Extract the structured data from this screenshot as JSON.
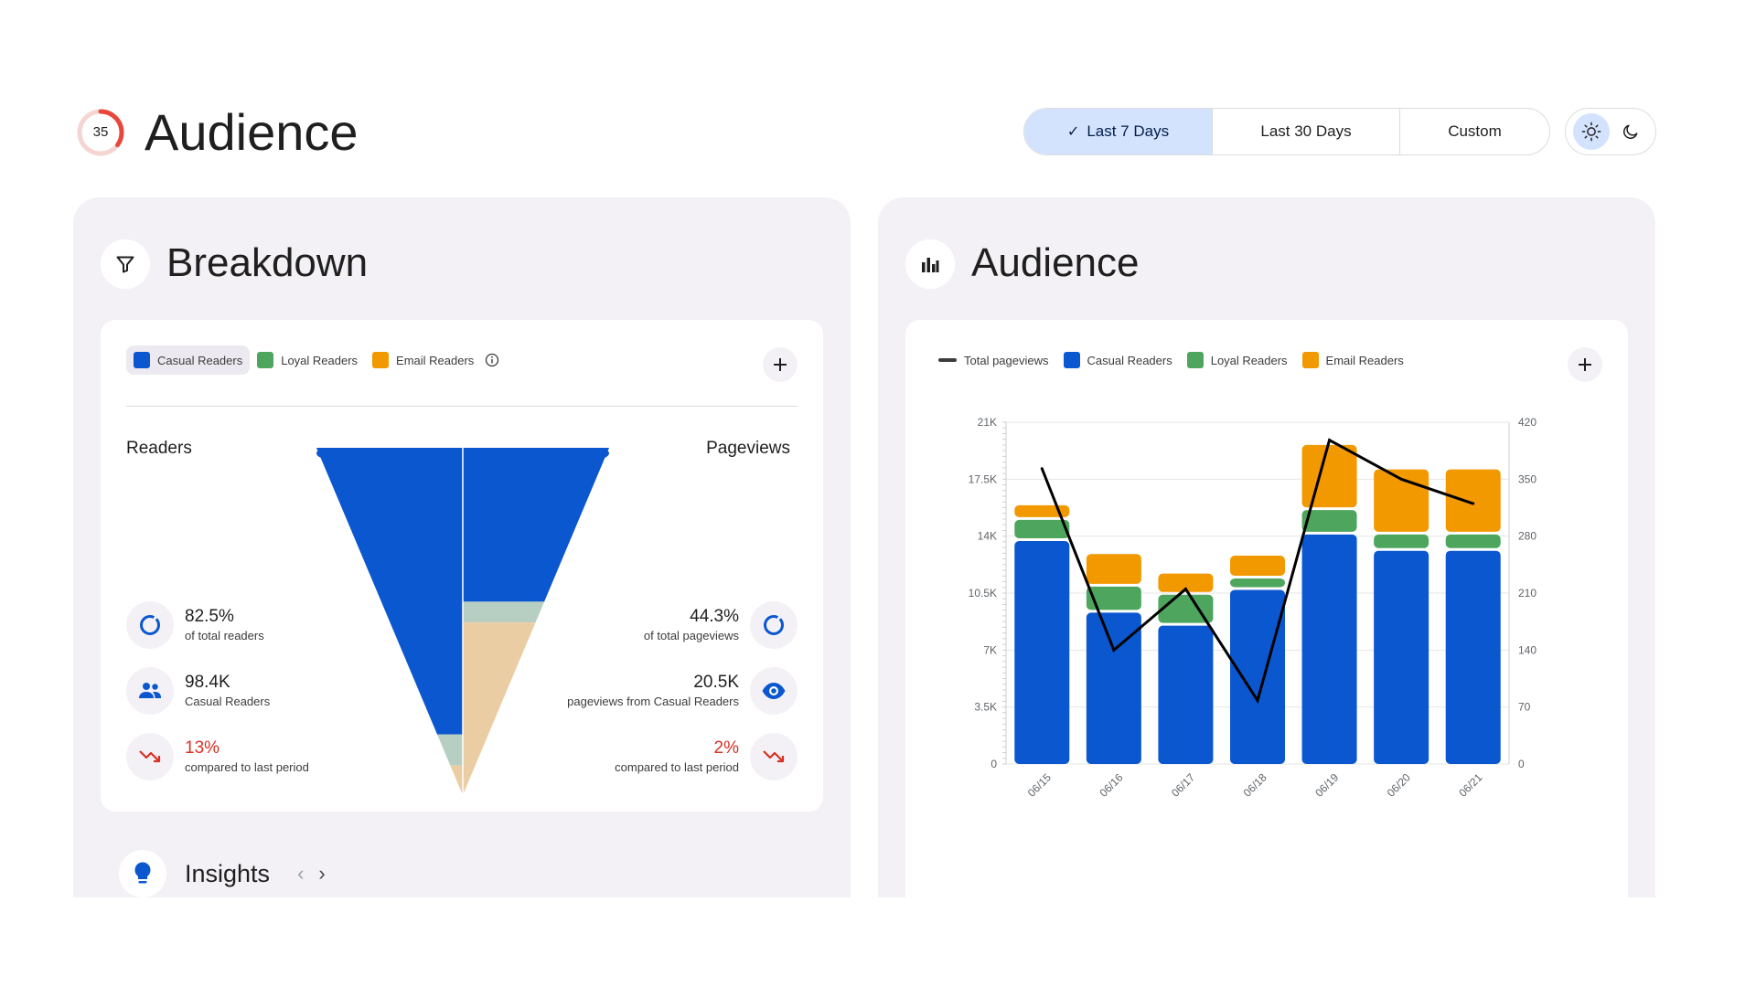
{
  "header": {
    "score": "35",
    "score_fraction": 0.35,
    "title": "Audience",
    "ranges": [
      {
        "label": "Last 7 Days",
        "active": true
      },
      {
        "label": "Last 30 Days",
        "active": false
      },
      {
        "label": "Custom",
        "active": false
      }
    ],
    "theme_icons": [
      "sun-icon",
      "moon-icon"
    ],
    "active_theme": "light"
  },
  "colors": {
    "casual": "#0b57d0",
    "loyal": "#4ea65e",
    "email": "#f29900",
    "negative": "#d93025",
    "score_ring": "#e8473b"
  },
  "breakdown": {
    "title": "Breakdown",
    "icon": "filter-icon",
    "legend": [
      {
        "label": "Casual Readers",
        "color": "#0b57d0",
        "selected": true
      },
      {
        "label": "Loyal Readers",
        "color": "#4ea65e",
        "selected": false
      },
      {
        "label": "Email Readers",
        "color": "#f29900",
        "selected": false
      }
    ],
    "readers_label": "Readers",
    "pageviews_label": "Pageviews",
    "readers_stats": [
      {
        "value": "82.5%",
        "sub": "of total readers",
        "icon": "donut-icon"
      },
      {
        "value": "98.4K",
        "sub": "Casual Readers",
        "icon": "people-icon"
      },
      {
        "value": "13%",
        "sub": "compared to last period",
        "icon": "trending-down-icon",
        "negative": true
      }
    ],
    "pageviews_stats": [
      {
        "value": "44.3%",
        "sub": "of total pageviews",
        "icon": "donut-icon"
      },
      {
        "value": "20.5K",
        "sub": "pageviews from Casual Readers",
        "icon": "eye-icon"
      },
      {
        "value": "2%",
        "sub": "compared to last period",
        "icon": "trending-down-icon",
        "negative": true
      }
    ],
    "funnel": {
      "readers_share": [
        0.825,
        0.09,
        0.085
      ],
      "pageviews_share": [
        0.443,
        0.06,
        0.497
      ]
    }
  },
  "insights": {
    "label": "Insights",
    "icon": "lightbulb-icon"
  },
  "audience_chart_panel": {
    "title": "Audience",
    "icon": "bar-chart-icon"
  },
  "chart_data": {
    "type": "bar",
    "stacked": true,
    "categories": [
      "06/15",
      "06/16",
      "06/17",
      "06/18",
      "06/19",
      "06/20",
      "06/21"
    ],
    "legend": [
      "Total pageviews",
      "Casual Readers",
      "Loyal Readers",
      "Email Readers"
    ],
    "series": [
      {
        "name": "Casual Readers",
        "color": "#0b57d0",
        "axis": "left",
        "values": [
          13700,
          9300,
          8500,
          10700,
          14100,
          13100,
          13100
        ]
      },
      {
        "name": "Loyal Readers",
        "color": "#4ea65e",
        "axis": "left",
        "values": [
          1300,
          1600,
          1900,
          700,
          1500,
          1000,
          1000
        ]
      },
      {
        "name": "Email Readers",
        "color": "#f29900",
        "axis": "left",
        "values": [
          900,
          2000,
          1300,
          1400,
          4000,
          4000,
          4000
        ]
      },
      {
        "name": "Total pageviews",
        "type": "line",
        "color": "#000000",
        "axis": "right",
        "values": [
          363,
          140,
          215,
          78,
          398,
          350,
          320
        ]
      }
    ],
    "y_left": {
      "min": 0,
      "max": 21000,
      "ticks": [
        "0",
        "3.5K",
        "7K",
        "10.5K",
        "14K",
        "17.5K",
        "21K"
      ]
    },
    "y_right": {
      "min": 0,
      "max": 420,
      "ticks": [
        "0",
        "70",
        "140",
        "210",
        "280",
        "350",
        "420"
      ]
    },
    "grid": true,
    "legend_position": "top-left"
  }
}
